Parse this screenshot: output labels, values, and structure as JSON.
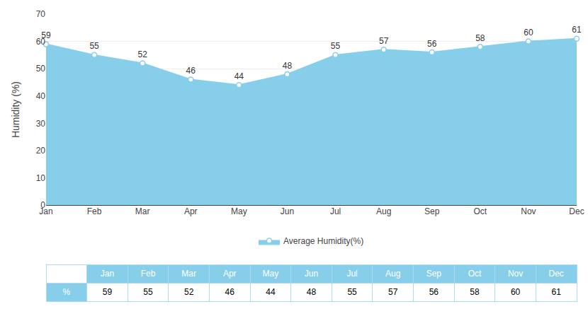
{
  "chart_data": {
    "type": "area",
    "categories": [
      "Jan",
      "Feb",
      "Mar",
      "Apr",
      "May",
      "Jun",
      "Jul",
      "Aug",
      "Sep",
      "Oct",
      "Nov",
      "Dec"
    ],
    "series": [
      {
        "name": "Average Humidity(%)",
        "color": "#87CEEB",
        "values": [
          59,
          55,
          52,
          46,
          44,
          48,
          55,
          57,
          56,
          58,
          60,
          61
        ]
      }
    ],
    "ylabel": "Humidity (%)",
    "ylim": [
      0,
      70
    ],
    "yticks": [
      0,
      10,
      20,
      30,
      40,
      50,
      60,
      70
    ],
    "grid": true,
    "legend": "bottom",
    "data_labels": true,
    "marker": "circle",
    "table_row_label": "%"
  }
}
